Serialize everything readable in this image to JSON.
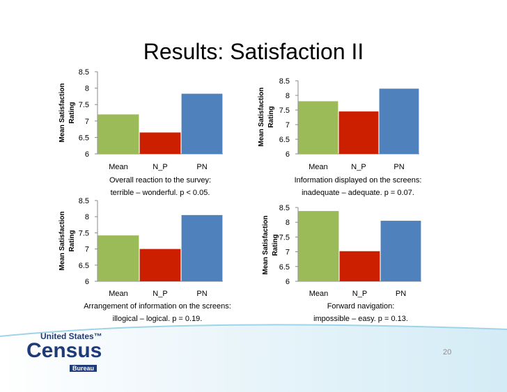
{
  "slide": {
    "title": "Results: Satisfaction II",
    "page_number": "20"
  },
  "logo": {
    "line1": "United States",
    "tm": "™",
    "line2": "Census",
    "line3": "Bureau"
  },
  "colors": {
    "Mean": "#9bbb59",
    "N_P": "#cc1f00",
    "PN": "#4f81bd"
  },
  "chart_data": [
    {
      "type": "bar",
      "categories": [
        "Mean",
        "N_P",
        "PN"
      ],
      "values": [
        7.2,
        6.65,
        7.83
      ],
      "ylabel": [
        "Mean Satisfaction",
        "Rating"
      ],
      "ylim": [
        6,
        8.5
      ],
      "ticks": [
        "6",
        "6.5",
        "7",
        "7.5",
        "8",
        "8.5"
      ],
      "caption_line1": "Overall reaction to the survey:",
      "caption_line2": "terrible – wonderful. p < 0.05."
    },
    {
      "type": "bar",
      "categories": [
        "Mean",
        "N_P",
        "PN"
      ],
      "values": [
        7.8,
        7.45,
        8.23
      ],
      "ylabel": [
        "Mean Satisfaction",
        "Rating"
      ],
      "ylim": [
        6,
        8.5
      ],
      "ticks": [
        "6",
        "6.5",
        "7",
        "7.5",
        "8",
        "8.5"
      ],
      "caption_line1": "Information displayed on the screens:",
      "caption_line2": "inadequate – adequate. p = 0.07."
    },
    {
      "type": "bar",
      "categories": [
        "Mean",
        "N_P",
        "PN"
      ],
      "values": [
        7.42,
        7.0,
        8.05
      ],
      "ylabel": [
        "Mean Satisfaction",
        "Rating"
      ],
      "ylim": [
        6,
        8.5
      ],
      "ticks": [
        "6",
        "6.5",
        "7",
        "7.5",
        "8",
        "8.5"
      ],
      "caption_line1": "Arrangement of information on the screens:",
      "caption_line2": "illogical – logical. p = 0.19."
    },
    {
      "type": "bar",
      "categories": [
        "Mean",
        "N_P",
        "PN"
      ],
      "values": [
        8.38,
        7.02,
        8.05
      ],
      "ylabel": [
        "Mean Satisfaction",
        "Rating"
      ],
      "ylim": [
        6,
        8.5
      ],
      "ticks": [
        "6",
        "6.5",
        "7",
        "7.5",
        "8",
        "8.5"
      ],
      "caption_line1": "Forward navigation:",
      "caption_line2": "impossible – easy. p = 0.13."
    }
  ]
}
